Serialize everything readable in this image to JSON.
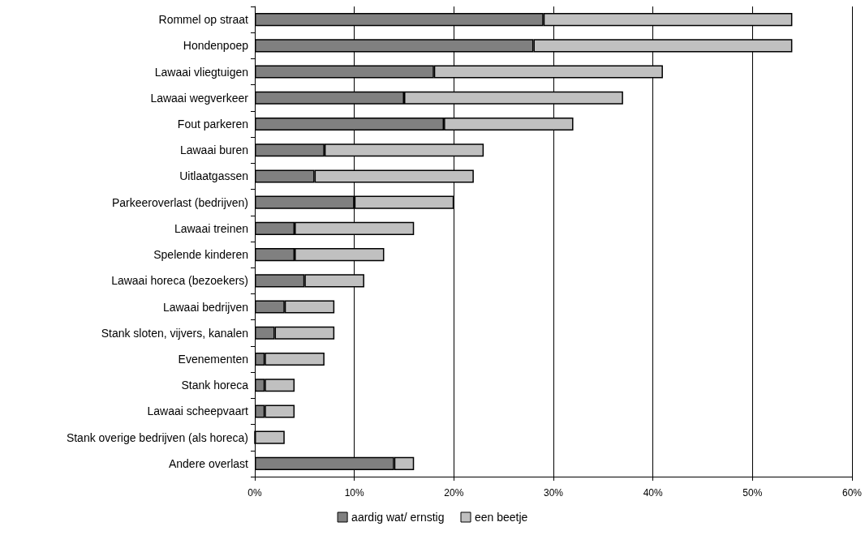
{
  "chart_data": {
    "type": "bar",
    "orientation": "horizontal",
    "stacked": true,
    "categories": [
      "Rommel op straat",
      "Hondenpoep",
      "Lawaai vliegtuigen",
      "Lawaai wegverkeer",
      "Fout parkeren",
      "Lawaai buren",
      "Uitlaatgassen",
      "Parkeeroverlast (bedrijven)",
      "Lawaai treinen",
      "Spelende kinderen",
      "Lawaai horeca (bezoekers)",
      "Lawaai bedrijven",
      "Stank sloten, vijvers, kanalen",
      "Evenementen",
      "Stank horeca",
      "Lawaai scheepvaart",
      "Stank overige bedrijven (als horeca)",
      "Andere overlast"
    ],
    "series": [
      {
        "name": "aardig wat/ ernstig",
        "color": "#808080",
        "values": [
          29,
          28,
          18,
          15,
          19,
          7,
          6,
          10,
          4,
          4,
          5,
          3,
          2,
          1,
          1,
          1,
          0,
          14
        ]
      },
      {
        "name": "een beetje",
        "color": "#c0c0c0",
        "values": [
          25,
          26,
          23,
          22,
          13,
          16,
          16,
          10,
          12,
          9,
          6,
          5,
          6,
          6,
          3,
          3,
          3,
          2
        ]
      }
    ],
    "xlim": [
      0,
      60
    ],
    "xticks": [
      {
        "value": 0,
        "label": "0%"
      },
      {
        "value": 10,
        "label": "10%"
      },
      {
        "value": 20,
        "label": "20%"
      },
      {
        "value": 30,
        "label": "30%"
      },
      {
        "value": 40,
        "label": "40%"
      },
      {
        "value": 50,
        "label": "50%"
      },
      {
        "value": 60,
        "label": "60%"
      }
    ],
    "grid": "x",
    "legend": "bottom"
  }
}
